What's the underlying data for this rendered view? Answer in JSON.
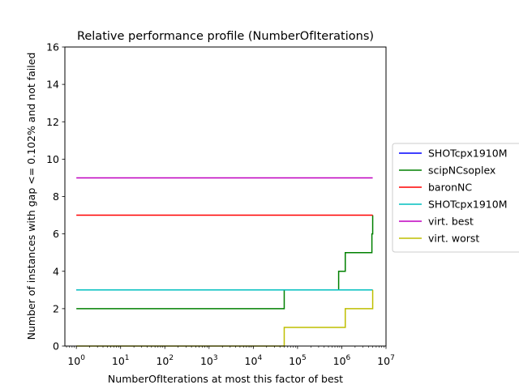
{
  "chart_data": {
    "type": "line",
    "title": "Relative performance profile (NumberOfIterations)",
    "xlabel": "NumberOfIterations at most this factor of best",
    "ylabel": "Number of instances with gap <= 0.102% and not failed",
    "x_scale": "log",
    "xlim": [
      0.55,
      10000000
    ],
    "ylim": [
      0,
      16
    ],
    "x_ticks": [
      {
        "value": 1,
        "base": "10",
        "exp": "0"
      },
      {
        "value": 10,
        "base": "10",
        "exp": "1"
      },
      {
        "value": 100,
        "base": "10",
        "exp": "2"
      },
      {
        "value": 1000,
        "base": "10",
        "exp": "3"
      },
      {
        "value": 10000,
        "base": "10",
        "exp": "4"
      },
      {
        "value": 100000,
        "base": "10",
        "exp": "5"
      },
      {
        "value": 1000000,
        "base": "10",
        "exp": "6"
      },
      {
        "value": 10000000,
        "base": "10",
        "exp": "7"
      }
    ],
    "y_ticks": [
      "0",
      "2",
      "4",
      "6",
      "8",
      "10",
      "12",
      "14",
      "16"
    ],
    "grid": false,
    "legend_position": "outside-right",
    "series": [
      {
        "name": "SHOTcpx1910M",
        "color": "#0000ff",
        "x": [
          1,
          5000000
        ],
        "y": [
          3,
          3
        ]
      },
      {
        "name": "scipNCsoplex",
        "color": "#008000",
        "x": [
          1,
          50000,
          50000,
          850000,
          850000,
          1200000,
          1200000,
          4800000,
          4800000,
          5000000,
          5000000
        ],
        "y": [
          2,
          2,
          3,
          3,
          4,
          4,
          5,
          5,
          6,
          6,
          7
        ]
      },
      {
        "name": "baronNC",
        "color": "#ff0000",
        "x": [
          1,
          5000000
        ],
        "y": [
          7,
          7
        ]
      },
      {
        "name": "SHOTcpx1910M",
        "color": "#00bfbf",
        "x": [
          1,
          5000000
        ],
        "y": [
          3,
          3
        ]
      },
      {
        "name": "virt. best",
        "color": "#bf00bf",
        "x": [
          1,
          5000000
        ],
        "y": [
          9,
          9
        ]
      },
      {
        "name": "virt. worst",
        "color": "#bfbf00",
        "x": [
          1,
          50000,
          50000,
          1200000,
          1200000,
          5000000,
          5000000
        ],
        "y": [
          0,
          0,
          1,
          1,
          2,
          2,
          3
        ]
      }
    ]
  }
}
